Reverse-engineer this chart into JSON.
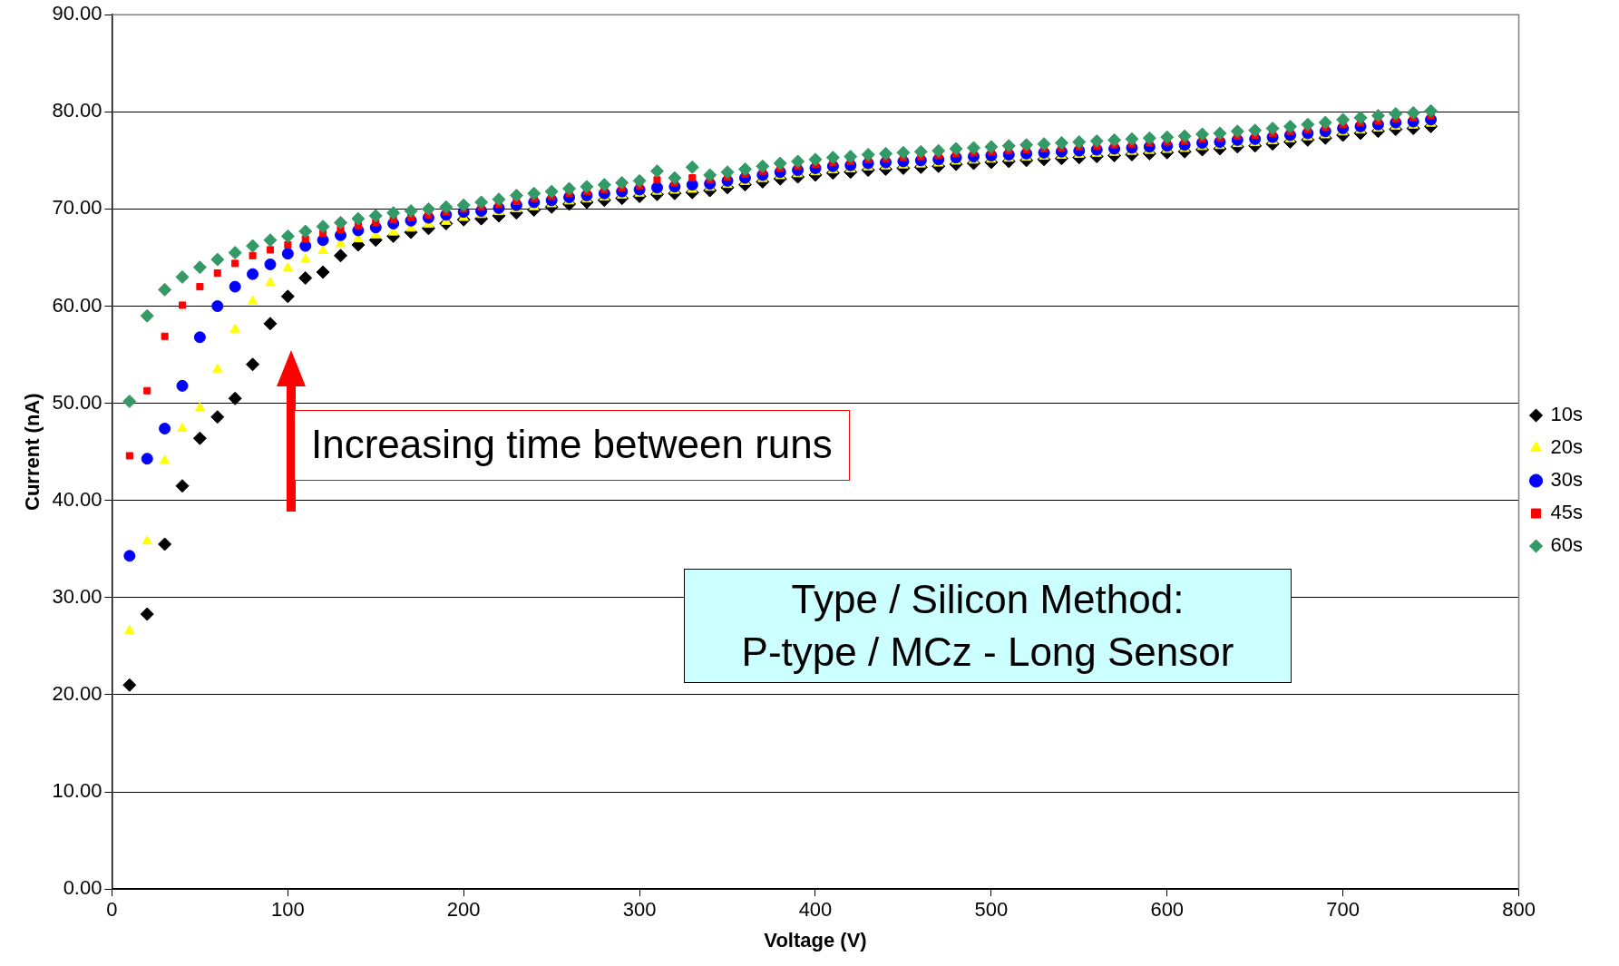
{
  "chart_data": {
    "type": "scatter",
    "xlabel": "Voltage (V)",
    "ylabel": "Current (nA)",
    "x": [
      10,
      20,
      30,
      40,
      50,
      60,
      70,
      80,
      90,
      100,
      110,
      120,
      130,
      140,
      150,
      160,
      170,
      180,
      190,
      200,
      210,
      220,
      230,
      240,
      250,
      260,
      270,
      280,
      290,
      300,
      310,
      320,
      330,
      340,
      350,
      360,
      370,
      380,
      390,
      400,
      410,
      420,
      430,
      440,
      450,
      460,
      470,
      480,
      490,
      500,
      510,
      520,
      530,
      540,
      550,
      560,
      570,
      580,
      590,
      600,
      610,
      620,
      630,
      640,
      650,
      660,
      670,
      680,
      690,
      700,
      710,
      720,
      730,
      740,
      750
    ],
    "series": [
      {
        "name": "10s",
        "color": "#000000",
        "marker": "diamond",
        "values": [
          21.0,
          28.3,
          35.5,
          41.5,
          46.4,
          48.6,
          50.5,
          54.0,
          58.2,
          61.0,
          62.9,
          63.5,
          65.2,
          66.3,
          66.8,
          67.2,
          67.6,
          68.0,
          68.5,
          68.9,
          69.0,
          69.3,
          69.6,
          69.9,
          70.2,
          70.5,
          70.7,
          70.9,
          71.1,
          71.3,
          71.5,
          71.6,
          71.7,
          71.9,
          72.2,
          72.5,
          72.8,
          73.1,
          73.3,
          73.5,
          73.7,
          73.8,
          74.0,
          74.1,
          74.2,
          74.3,
          74.4,
          74.6,
          74.7,
          74.8,
          74.9,
          75.0,
          75.1,
          75.2,
          75.3,
          75.4,
          75.5,
          75.6,
          75.7,
          75.8,
          75.9,
          76.1,
          76.2,
          76.4,
          76.5,
          76.7,
          76.9,
          77.1,
          77.3,
          77.6,
          77.8,
          78.0,
          78.2,
          78.3,
          78.5
        ]
      },
      {
        "name": "20s",
        "color": "#ffff00",
        "marker": "triangle",
        "values": [
          26.6,
          35.8,
          44.1,
          47.4,
          49.5,
          53.5,
          57.6,
          60.5,
          62.4,
          63.9,
          64.8,
          65.7,
          66.4,
          66.9,
          67.3,
          67.6,
          68.0,
          68.4,
          68.7,
          69.1,
          69.4,
          69.7,
          70.0,
          70.2,
          70.5,
          70.8,
          71.0,
          71.2,
          71.4,
          71.6,
          71.8,
          71.9,
          72.0,
          72.2,
          72.5,
          72.8,
          73.1,
          73.4,
          73.6,
          73.8,
          74.0,
          74.1,
          74.3,
          74.4,
          74.5,
          74.6,
          74.7,
          74.9,
          75.0,
          75.1,
          75.2,
          75.3,
          75.4,
          75.5,
          75.6,
          75.7,
          75.8,
          75.9,
          76.0,
          76.1,
          76.2,
          76.4,
          76.5,
          76.7,
          76.8,
          77.0,
          77.2,
          77.4,
          77.6,
          77.9,
          78.1,
          78.3,
          78.5,
          78.6,
          78.8
        ]
      },
      {
        "name": "30s",
        "color": "#0000ff",
        "marker": "circle",
        "values": [
          34.3,
          44.3,
          47.4,
          51.8,
          56.8,
          60.0,
          62.0,
          63.3,
          64.3,
          65.4,
          66.2,
          66.8,
          67.3,
          67.8,
          68.1,
          68.5,
          68.8,
          69.1,
          69.4,
          69.7,
          69.8,
          70.1,
          70.4,
          70.7,
          70.9,
          71.2,
          71.4,
          71.6,
          71.8,
          72.0,
          72.2,
          72.3,
          72.5,
          72.6,
          72.9,
          73.2,
          73.5,
          73.8,
          74.0,
          74.2,
          74.4,
          74.5,
          74.7,
          74.8,
          74.9,
          75.0,
          75.1,
          75.3,
          75.4,
          75.5,
          75.6,
          75.7,
          75.8,
          75.9,
          76.0,
          76.1,
          76.2,
          76.3,
          76.4,
          76.5,
          76.6,
          76.8,
          76.9,
          77.1,
          77.2,
          77.4,
          77.6,
          77.8,
          78.0,
          78.3,
          78.5,
          78.7,
          78.9,
          79.0,
          79.2
        ]
      },
      {
        "name": "45s",
        "color": "#ff0000",
        "marker": "square",
        "values": [
          44.6,
          51.3,
          56.9,
          60.1,
          62.0,
          63.4,
          64.4,
          65.2,
          65.8,
          66.3,
          66.9,
          67.5,
          67.9,
          68.3,
          68.6,
          68.9,
          69.1,
          69.4,
          69.7,
          70.0,
          70.2,
          70.5,
          70.8,
          71.1,
          71.3,
          71.6,
          71.8,
          72.0,
          72.2,
          72.4,
          73.0,
          72.7,
          73.2,
          73.0,
          73.3,
          73.6,
          73.9,
          74.2,
          74.4,
          74.6,
          74.8,
          74.9,
          75.1,
          75.2,
          75.3,
          75.4,
          75.5,
          75.7,
          75.8,
          75.9,
          76.0,
          76.1,
          76.2,
          76.3,
          76.4,
          76.5,
          76.6,
          76.7,
          76.8,
          76.9,
          77.0,
          77.2,
          77.3,
          77.5,
          77.6,
          77.8,
          78.0,
          78.2,
          78.4,
          78.7,
          78.9,
          79.1,
          79.3,
          79.4,
          79.6
        ]
      },
      {
        "name": "60s",
        "color": "#339966",
        "marker": "diamond",
        "values": [
          50.2,
          59.0,
          61.7,
          63.0,
          64.0,
          64.8,
          65.5,
          66.2,
          66.8,
          67.2,
          67.7,
          68.2,
          68.6,
          69.0,
          69.3,
          69.6,
          69.8,
          70.0,
          70.2,
          70.4,
          70.7,
          71.0,
          71.4,
          71.6,
          71.8,
          72.1,
          72.3,
          72.5,
          72.7,
          72.9,
          73.9,
          73.2,
          74.3,
          73.5,
          73.8,
          74.1,
          74.4,
          74.7,
          74.9,
          75.1,
          75.3,
          75.4,
          75.6,
          75.7,
          75.8,
          75.9,
          76.0,
          76.2,
          76.3,
          76.4,
          76.5,
          76.6,
          76.7,
          76.8,
          76.9,
          77.0,
          77.1,
          77.2,
          77.3,
          77.4,
          77.5,
          77.7,
          77.8,
          78.0,
          78.1,
          78.3,
          78.5,
          78.7,
          78.9,
          79.2,
          79.4,
          79.6,
          79.8,
          79.9,
          80.1
        ]
      }
    ],
    "xlim": [
      0,
      800
    ],
    "xticks": [
      0,
      100,
      200,
      300,
      400,
      500,
      600,
      700,
      800
    ],
    "ylim": [
      0,
      90
    ],
    "yticks": [
      {
        "value": 0,
        "label": "0.00"
      },
      {
        "value": 10,
        "label": "10.00"
      },
      {
        "value": 20,
        "label": "20.00"
      },
      {
        "value": 30,
        "label": "30.00"
      },
      {
        "value": 40,
        "label": "40.00"
      },
      {
        "value": 50,
        "label": "50.00"
      },
      {
        "value": 60,
        "label": "60.00"
      },
      {
        "value": 70,
        "label": "70.00"
      },
      {
        "value": 80,
        "label": "80.00"
      },
      {
        "value": 90,
        "label": "90.00"
      }
    ],
    "grid": "y",
    "legend": "right",
    "annotations": [
      "Increasing time between runs",
      "Type / Silicon Method:\nP-type / MCz - Long Sensor"
    ]
  }
}
